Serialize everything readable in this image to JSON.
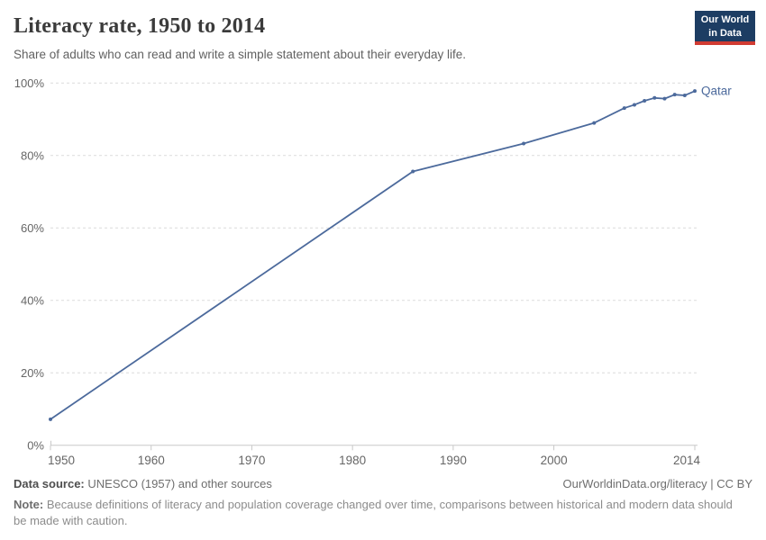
{
  "header": {
    "title": "Literacy rate, 1950 to 2014",
    "subtitle": "Share of adults who can read and write a simple statement about their everyday life.",
    "logo": {
      "line1": "Our World",
      "line2": "in Data",
      "bg_color": "#1d3d63",
      "accent_color": "#d13b32"
    }
  },
  "footer": {
    "datasource_label": "Data source:",
    "datasource_value": "UNESCO (1957) and other sources",
    "link": "OurWorldinData.org/literacy | CC BY",
    "note_label": "Note:",
    "note_value": "Because definitions of literacy and population coverage changed over time, comparisons between historical and modern data should be made with caution."
  },
  "chart_data": {
    "type": "line",
    "title": "Literacy rate, 1950 to 2014",
    "xlabel": "",
    "ylabel": "",
    "xlim": [
      1950,
      2014
    ],
    "ylim": [
      0,
      100
    ],
    "xticks": [
      1950,
      1960,
      1970,
      1980,
      1990,
      2000,
      2014
    ],
    "yticks": [
      0,
      20,
      40,
      60,
      80,
      100
    ],
    "ytick_suffix": "%",
    "grid": "dashed-horizontal",
    "legend_position": "end-of-line-label",
    "series": [
      {
        "name": "Qatar",
        "color": "#4c6a9c",
        "points": [
          [
            1950,
            7.2
          ],
          [
            1986,
            75.6
          ],
          [
            1997,
            83.3
          ],
          [
            2004,
            89.0
          ],
          [
            2007,
            93.1
          ],
          [
            2008,
            94.0
          ],
          [
            2009,
            95.1
          ],
          [
            2010,
            95.9
          ],
          [
            2011,
            95.7
          ],
          [
            2012,
            96.8
          ],
          [
            2013,
            96.6
          ],
          [
            2014,
            97.8
          ]
        ]
      }
    ],
    "colors": {
      "gridline": "#dcdcdc",
      "axis": "#c8c8c8",
      "tick_label": "#666666"
    }
  }
}
